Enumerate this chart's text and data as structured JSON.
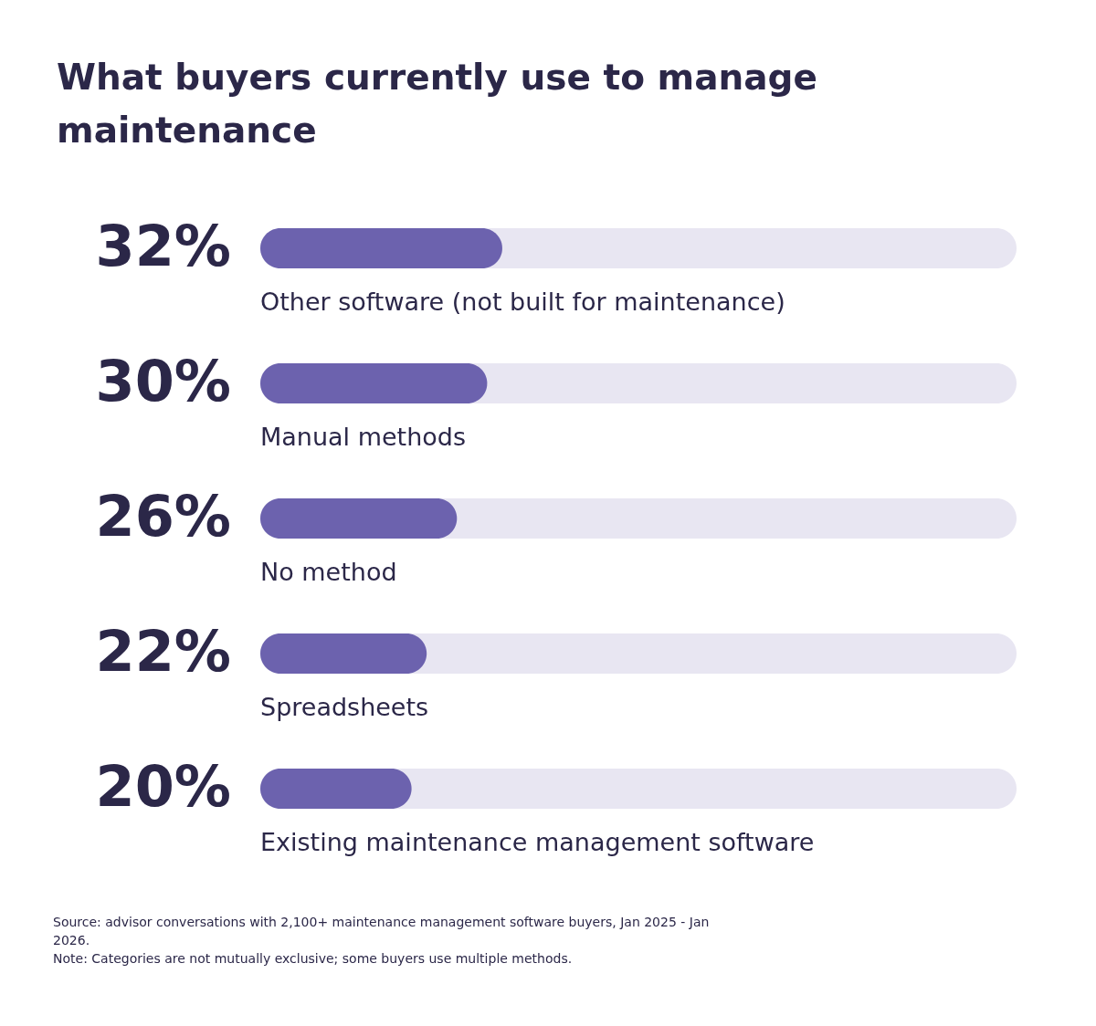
{
  "chart_data": {
    "type": "bar",
    "orientation": "horizontal",
    "title": "What buyers currently use to manage maintenance",
    "categories": [
      "Other software (not built for maintenance)",
      "Manual methods",
      "No method",
      "Spreadsheets",
      "Existing maintenance management software"
    ],
    "values": [
      32,
      30,
      26,
      22,
      20
    ],
    "value_labels": [
      "32%",
      "30%",
      "26%",
      "22%",
      "20%"
    ],
    "color": "#6c62ae",
    "xlim": [
      0,
      100
    ],
    "tick_labels": false,
    "annotations": [
      "Source: advisor conversations with 2,100+ maintenance management software buyers, Jan 2025 - Jan 2026.",
      "Note: Categories are not mutually exclusive; some buyers use multiple methods."
    ]
  }
}
